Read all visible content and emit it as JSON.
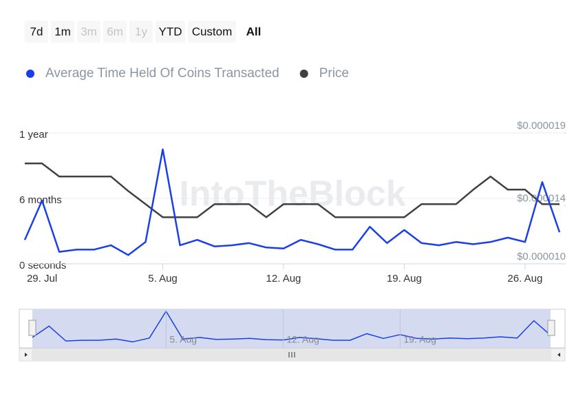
{
  "chart_data": {
    "type": "line",
    "watermark": "IntoTheBlock",
    "range_buttons": [
      {
        "label": "7d",
        "enabled": true
      },
      {
        "label": "1m",
        "enabled": true
      },
      {
        "label": "3m",
        "enabled": false
      },
      {
        "label": "6m",
        "enabled": false
      },
      {
        "label": "1y",
        "enabled": false
      },
      {
        "label": "YTD",
        "enabled": true
      },
      {
        "label": "Custom",
        "enabled": true
      },
      {
        "label": "All",
        "enabled": true,
        "selected": true
      }
    ],
    "categories": [
      null,
      "29. Jul",
      null,
      null,
      null,
      null,
      null,
      null,
      "5. Aug",
      null,
      null,
      null,
      null,
      null,
      null,
      "12. Aug",
      null,
      null,
      null,
      null,
      null,
      null,
      "19. Aug",
      null,
      null,
      null,
      null,
      null,
      null,
      "26. Aug",
      null,
      null
    ],
    "ylim": [
      0,
      12
    ],
    "yticks": [
      {
        "value": 0,
        "label": "0 seconds"
      },
      {
        "value": 6,
        "label": "6 months"
      },
      {
        "value": 12,
        "label": "1 year"
      }
    ],
    "y2lim": [
      1e-05,
      1.9e-05
    ],
    "y2ticks": [
      {
        "value": 1e-05,
        "label": "$0.000010"
      },
      {
        "value": 1.4e-05,
        "label": "$0.000014"
      },
      {
        "value": 1.9e-05,
        "label": "$0.000019"
      }
    ],
    "grid": true,
    "legend": "top-left",
    "series": [
      {
        "name": "Average Time Held Of Coins Transacted",
        "color": "#1a3ee8",
        "values": [
          2.2,
          5.8,
          1.1,
          1.3,
          1.3,
          1.7,
          0.8,
          2.0,
          10.5,
          1.7,
          2.2,
          1.6,
          1.7,
          1.9,
          1.5,
          1.4,
          2.2,
          1.8,
          1.3,
          1.3,
          3.4,
          1.9,
          3.1,
          1.9,
          1.7,
          2.0,
          1.8,
          2.0,
          2.4,
          2.0,
          7.5,
          2.9
        ]
      },
      {
        "name": "Price",
        "color": "#3d4145",
        "axis": "y2",
        "values": [
          1.69e-05,
          1.69e-05,
          1.6e-05,
          1.6e-05,
          1.6e-05,
          1.6e-05,
          1.5e-05,
          1.41e-05,
          1.32e-05,
          1.32e-05,
          1.32e-05,
          1.41e-05,
          1.41e-05,
          1.41e-05,
          1.32e-05,
          1.41e-05,
          1.41e-05,
          1.41e-05,
          1.32e-05,
          1.32e-05,
          1.32e-05,
          1.32e-05,
          1.32e-05,
          1.41e-05,
          1.41e-05,
          1.41e-05,
          1.51e-05,
          1.6e-05,
          1.51e-05,
          1.51e-05,
          1.41e-05,
          1.41e-05
        ]
      }
    ]
  }
}
